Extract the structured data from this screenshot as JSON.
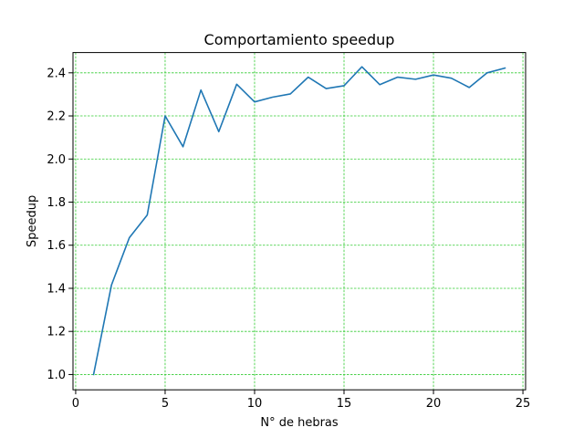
{
  "chart_data": {
    "type": "line",
    "title": "Comportamiento speedup",
    "xlabel": "N° de hebras",
    "ylabel": "Speedup",
    "xlim": [
      -0.15,
      25.15
    ],
    "ylim": [
      0.929,
      2.494
    ],
    "xticks": [
      0,
      5,
      10,
      15,
      20,
      25
    ],
    "xtick_labels": [
      "0",
      "5",
      "10",
      "15",
      "20",
      "25"
    ],
    "yticks": [
      1.0,
      1.2,
      1.4,
      1.6,
      1.8,
      2.0,
      2.2,
      2.4
    ],
    "ytick_labels": [
      "1.0",
      "1.2",
      "1.4",
      "1.6",
      "1.8",
      "2.0",
      "2.2",
      "2.4"
    ],
    "grid": true,
    "grid_color": "#33cc33",
    "series": [
      {
        "color": "#1f77b4",
        "x": [
          1,
          2,
          3,
          4,
          5,
          6,
          7,
          8,
          9,
          10,
          11,
          12,
          13,
          14,
          15,
          16,
          17,
          18,
          19,
          20,
          21,
          22,
          23,
          24
        ],
        "y": [
          1.0,
          1.415,
          1.635,
          1.74,
          2.2,
          2.057,
          2.32,
          2.127,
          2.347,
          2.265,
          2.287,
          2.302,
          2.38,
          2.327,
          2.34,
          2.428,
          2.345,
          2.38,
          2.37,
          2.39,
          2.375,
          2.332,
          2.4,
          2.422
        ]
      }
    ]
  }
}
